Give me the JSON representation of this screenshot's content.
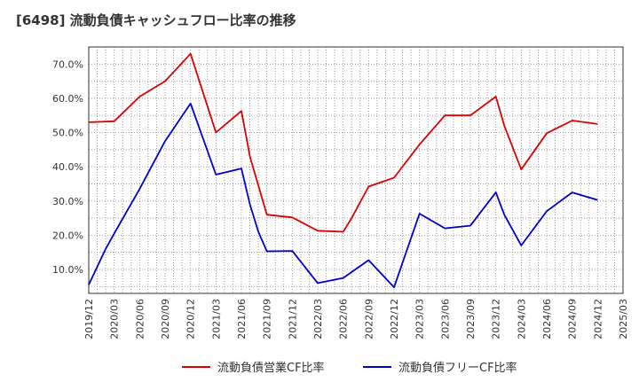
{
  "chart_data": {
    "type": "line",
    "title": "[6498]  流動負債キャッシュフロー比率の推移",
    "x": [
      "2019/12",
      "2020/03",
      "2020/06",
      "2020/09",
      "2020/12",
      "2021/03",
      "2021/06",
      "2021/09",
      "2021/12",
      "2022/03",
      "2022/06",
      "2022/09",
      "2022/12",
      "2023/03",
      "2023/06",
      "2023/09",
      "2023/12",
      "2024/03",
      "2024/06",
      "2024/09",
      "2024/12",
      "2025/03"
    ],
    "xlim": [
      "2019/12",
      "2025/03"
    ],
    "ylim": [
      3,
      75
    ],
    "yticks": [
      10,
      20,
      30,
      40,
      50,
      60,
      70
    ],
    "ytick_labels": [
      "10.0%",
      "20.0%",
      "30.0%",
      "40.0%",
      "50.0%",
      "60.0%",
      "70.0%"
    ],
    "grid": true,
    "legend_position": "bottom",
    "series": [
      {
        "name": "流動負債営業CF比率",
        "color": "#dd0000",
        "points": [
          [
            "2019/12",
            53.0
          ],
          [
            "2020/03",
            53.3
          ],
          [
            "2020/06",
            60.5
          ],
          [
            "2020/09",
            65.0
          ],
          [
            "2020/12",
            73.0
          ],
          [
            "2021/03",
            50.0
          ],
          [
            "2021/06",
            56.3
          ],
          [
            "2021/07",
            43.0
          ],
          [
            "2021/09",
            26.0
          ],
          [
            "2021/12",
            25.2
          ],
          [
            "2022/03",
            21.3
          ],
          [
            "2022/06",
            21.0
          ],
          [
            "2022/07",
            25.0
          ],
          [
            "2022/09",
            34.2
          ],
          [
            "2022/12",
            36.8
          ],
          [
            "2023/03",
            46.5
          ],
          [
            "2023/06",
            55.0
          ],
          [
            "2023/09",
            55.0
          ],
          [
            "2023/12",
            60.5
          ],
          [
            "2024/01",
            52.0
          ],
          [
            "2024/03",
            39.2
          ],
          [
            "2024/06",
            49.8
          ],
          [
            "2024/09",
            53.5
          ],
          [
            "2024/12",
            52.5
          ]
        ]
      },
      {
        "name": "流動負債フリーCF比率",
        "color": "#0000cc",
        "points": [
          [
            "2019/12",
            5.5
          ],
          [
            "2020/02",
            16.0
          ],
          [
            "2020/03",
            20.5
          ],
          [
            "2020/06",
            33.5
          ],
          [
            "2020/09",
            47.5
          ],
          [
            "2020/12",
            58.5
          ],
          [
            "2021/03",
            37.7
          ],
          [
            "2021/06",
            39.5
          ],
          [
            "2021/07",
            29.0
          ],
          [
            "2021/08",
            21.0
          ],
          [
            "2021/09",
            15.3
          ],
          [
            "2021/12",
            15.4
          ],
          [
            "2022/03",
            6.0
          ],
          [
            "2022/06",
            7.5
          ],
          [
            "2022/09",
            12.7
          ],
          [
            "2022/12",
            4.8
          ],
          [
            "2023/03",
            26.3
          ],
          [
            "2023/06",
            22.0
          ],
          [
            "2023/09",
            22.8
          ],
          [
            "2023/12",
            32.5
          ],
          [
            "2024/01",
            26.0
          ],
          [
            "2024/03",
            17.0
          ],
          [
            "2024/06",
            27.0
          ],
          [
            "2024/09",
            32.5
          ],
          [
            "2024/12",
            30.3
          ]
        ]
      }
    ]
  }
}
